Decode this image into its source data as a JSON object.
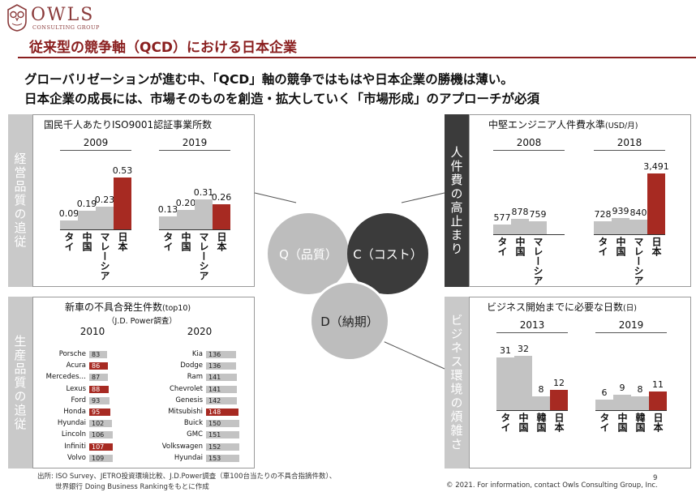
{
  "logo": {
    "name": "OWLS",
    "sub": "CONSULTING GROUP"
  },
  "title": "従来型の競争軸（QCD）における日本企業",
  "lead": [
    "グローバリゼーションが進む中、「QCD」軸の競争ではもはや日本企業の勝機は薄い。",
    "日本企業の成長には、市場そのものを創造・拡大していく「市場形成」のアプローチが必須"
  ],
  "sidebars": {
    "tl": "経営品質の追従",
    "bl": "生産品質の追従",
    "tr": "人件費の高止まり",
    "br": "ビジネス環境の煩雑さ"
  },
  "center": {
    "q": "Q（品質）",
    "c": "C（コスト）",
    "d": "D（納期）"
  },
  "colors": {
    "gray": "#c3c3c3",
    "red": "#a72a22",
    "dark": "#3b3b3b"
  },
  "chart_data": [
    {
      "type": "bar",
      "title": "国民千人あたりISO9001認証事業所数",
      "groups": [
        {
          "name": "2009",
          "categories": [
            "タイ",
            "中国",
            "マレーシア",
            "日本"
          ],
          "values": [
            0.09,
            0.19,
            0.23,
            0.53
          ],
          "labels": [
            "0.09",
            "0.19",
            "0.23",
            "0.53"
          ]
        },
        {
          "name": "2019",
          "categories": [
            "タイ",
            "中国",
            "マレーシア",
            "日本"
          ],
          "values": [
            0.13,
            0.2,
            0.31,
            0.26
          ],
          "labels": [
            "0.13",
            "0.20",
            "0.31",
            "0.26"
          ]
        }
      ],
      "highlight": "日本"
    },
    {
      "type": "bar",
      "title": "中堅エンジニア人件費水準",
      "unit": "(USD/月)",
      "groups": [
        {
          "name": "2008",
          "categories": [
            "タイ",
            "中国",
            "マレーシア"
          ],
          "values": [
            577,
            878,
            759
          ],
          "labels": [
            "577",
            "878",
            "759"
          ]
        },
        {
          "name": "2018",
          "categories": [
            "タイ",
            "中国",
            "マレーシア",
            "日本"
          ],
          "values": [
            728,
            939,
            840,
            3491
          ],
          "labels": [
            "728",
            "939",
            "840",
            "3,491"
          ]
        }
      ],
      "highlight": "日本"
    },
    {
      "type": "bar",
      "title": "新車の不具合発生件数",
      "unit": "(top10)",
      "subtitle": "（J.D. Power調査）",
      "orientation": "horizontal",
      "groups": [
        {
          "name": "2010",
          "categories": [
            "Porsche",
            "Acura",
            "Mercedes…",
            "Lexus",
            "Ford",
            "Honda",
            "Hyundai",
            "Lincoln",
            "Infiniti",
            "Volvo"
          ],
          "values": [
            83,
            86,
            87,
            88,
            93,
            95,
            102,
            106,
            107,
            109
          ],
          "japanese": [
            "Acura",
            "Lexus",
            "Honda",
            "Infiniti"
          ]
        },
        {
          "name": "2020",
          "categories": [
            "Kia",
            "Dodge",
            "Ram",
            "Chevrolet",
            "Genesis",
            "Mitsubishi",
            "Buick",
            "GMC",
            "Volkswagen",
            "Hyundai"
          ],
          "values": [
            136,
            136,
            141,
            141,
            142,
            148,
            150,
            151,
            152,
            153
          ],
          "japanese": [
            "Mitsubishi"
          ]
        }
      ]
    },
    {
      "type": "bar",
      "title": "ビジネス開始までに必要な日数",
      "unit": "(日)",
      "groups": [
        {
          "name": "2013",
          "categories": [
            "タイ",
            "中国",
            "韓国",
            "日本"
          ],
          "values": [
            31,
            32,
            8,
            12
          ],
          "labels": [
            "31",
            "32",
            "8",
            "12"
          ]
        },
        {
          "name": "2019",
          "categories": [
            "タイ",
            "中国",
            "韓国",
            "日本"
          ],
          "values": [
            6,
            9,
            8,
            11
          ],
          "labels": [
            "6",
            "9",
            "8",
            "11"
          ]
        }
      ],
      "highlight": "日本"
    }
  ],
  "footer": {
    "source1": "出所: ISO Survey、JETRO投資環境比較、J.D.Power調査（車100台当たりの不具合指摘件数）、",
    "source2": "世界銀行 Doing Business Rankingをもとに作成",
    "copyright": "© 2021. For information, contact Owls Consulting Group, Inc.",
    "page": "9"
  }
}
